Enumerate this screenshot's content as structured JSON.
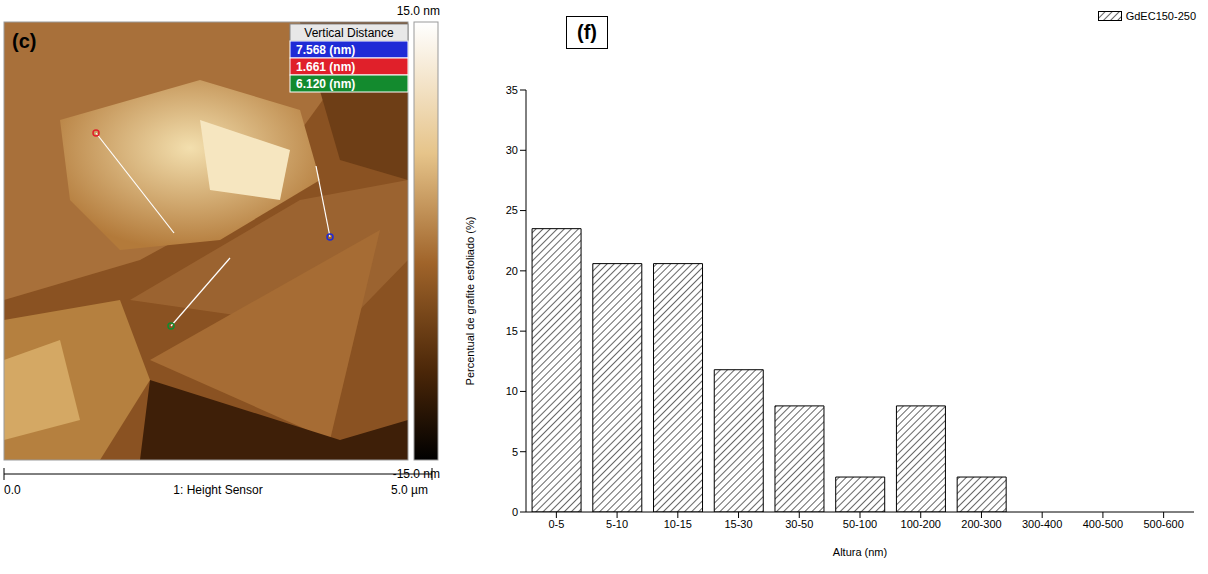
{
  "afm_image": {
    "panel_label": "(c)",
    "colorbar": {
      "range": [
        -15,
        15
      ],
      "ticks": [
        {
          "value": 15,
          "label": "15.0 nm"
        },
        {
          "value": -15,
          "label": "-15.0 nm"
        }
      ]
    },
    "scale_bar": {
      "start": "0.0",
      "channel": "1: Height Sensor",
      "end": "5.0 µm"
    },
    "measurements": {
      "title": "Vertical Distance",
      "rows": [
        {
          "label": "7.568 (nm)",
          "color": "#1f2bd6"
        },
        {
          "label": "1.661 (nm)",
          "color": "#e0202a"
        },
        {
          "label": "6.120 (nm)",
          "color": "#138a2e"
        }
      ]
    }
  },
  "chart_data": {
    "type": "bar",
    "title": "(f)",
    "x_label": "Altura (nm)",
    "y_label": "Percentual de grafite esfoliado (%)",
    "categories": [
      "0-5",
      "5-10",
      "10-15",
      "15-30",
      "30-50",
      "50-100",
      "100-200",
      "200-300",
      "300-400",
      "400-500",
      "500-600"
    ],
    "series": [
      {
        "name": "GdEC150-250",
        "color": "#000000",
        "values": [
          23.5,
          20.6,
          20.6,
          11.8,
          8.8,
          2.9,
          8.8,
          2.9,
          0,
          0,
          0
        ]
      }
    ],
    "ylim": [
      0,
      35
    ],
    "yticks": [
      0,
      5,
      10,
      15,
      20,
      25,
      30,
      35
    ],
    "grid": false,
    "legend": "top-right",
    "data_labels": false
  }
}
